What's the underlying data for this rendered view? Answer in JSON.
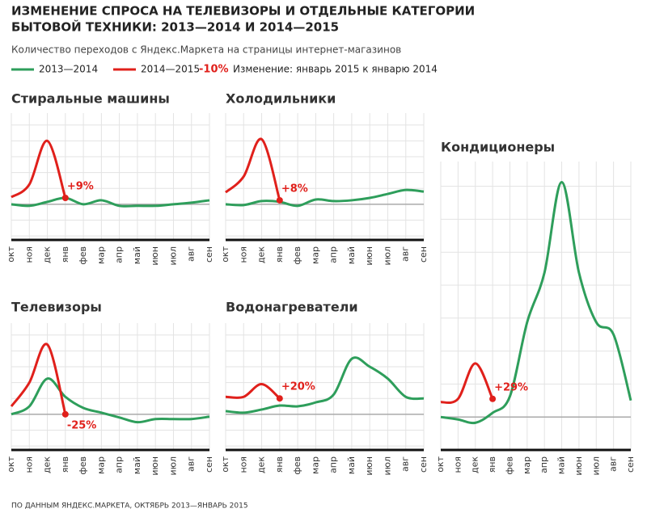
{
  "title": [
    "ИЗМЕНЕНИЕ СПРОСА НА ТЕЛЕВИЗОРЫ И ОТДЕЛЬНЫЕ КАТЕГОРИИ",
    "БЫТОВОЙ ТЕХНИКИ: 2013—2014 И 2014—2015"
  ],
  "subtitle": "Количество переходов с Яндекс.Маркета на страницы интернет-магазинов",
  "legend": [
    {
      "name": "2013—2014",
      "color": "#2e9e5b"
    },
    {
      "name": "2014—2015",
      "color": "#e0201b"
    }
  ],
  "legend_note": {
    "sample": "-10%",
    "text": "Изменение: январь 2015 к январю 2014"
  },
  "source": "ПО ДАННЫМ ЯНДЕКС.МАРКЕТА, ОКТЯБРЬ 2013—ЯНВАРЬ 2015",
  "chart_data": [
    {
      "type": "line",
      "title": "Стиральные машины",
      "categories": [
        "окт",
        "ноя",
        "дек",
        "янв",
        "фев",
        "мар",
        "апр",
        "май",
        "июн",
        "июл",
        "авг",
        "сен"
      ],
      "series": [
        {
          "values": [
            0,
            -2,
            3,
            8,
            0,
            5,
            -2,
            -2,
            -2,
            0,
            2,
            5
          ]
        },
        {
          "values": [
            9,
            25,
            80,
            8,
            null,
            null,
            null,
            null,
            null,
            null,
            null,
            null
          ]
        }
      ],
      "annotation": "+9%",
      "ylim": [
        -45,
        115
      ],
      "yticks": [
        -40,
        -20,
        0,
        20,
        40,
        60,
        80,
        100
      ],
      "grid": true,
      "reference_line": 0
    },
    {
      "type": "line",
      "title": "Холодильники",
      "categories": [
        "окт",
        "ноя",
        "дек",
        "янв",
        "фев",
        "мар",
        "апр",
        "май",
        "июн",
        "июл",
        "авг",
        "сен"
      ],
      "series": [
        {
          "values": [
            0,
            -1,
            4,
            3,
            -2,
            6,
            4,
            5,
            8,
            13,
            18,
            16
          ]
        },
        {
          "values": [
            15,
            35,
            82,
            5,
            null,
            null,
            null,
            null,
            null,
            null,
            null,
            null
          ]
        }
      ],
      "annotation": "+8%",
      "ylim": [
        -45,
        115
      ],
      "yticks": [
        -40,
        -20,
        0,
        20,
        40,
        60,
        80,
        100
      ],
      "grid": true,
      "reference_line": 0
    },
    {
      "type": "line",
      "title": "Телевизоры",
      "categories": [
        "окт",
        "ноя",
        "дек",
        "янв",
        "фев",
        "мар",
        "апр",
        "май",
        "июн",
        "июл",
        "авг",
        "сен"
      ],
      "series": [
        {
          "values": [
            0,
            10,
            45,
            22,
            8,
            2,
            -4,
            -10,
            -6,
            -6,
            -6,
            -3
          ]
        },
        {
          "values": [
            10,
            40,
            88,
            0,
            null,
            null,
            null,
            null,
            null,
            null,
            null,
            null
          ]
        }
      ],
      "annotation": "-25%",
      "ylim": [
        -45,
        115
      ],
      "yticks": [
        -40,
        -20,
        0,
        20,
        40,
        60,
        80,
        100
      ],
      "grid": true,
      "reference_line": 0
    },
    {
      "type": "line",
      "title": "Водонагреватели",
      "categories": [
        "окт",
        "ноя",
        "дек",
        "янв",
        "фев",
        "мар",
        "апр",
        "май",
        "июн",
        "июл",
        "авг",
        "сен"
      ],
      "series": [
        {
          "values": [
            4,
            2,
            6,
            11,
            10,
            15,
            25,
            70,
            60,
            45,
            22,
            20
          ]
        },
        {
          "values": [
            22,
            22,
            38,
            20,
            null,
            null,
            null,
            null,
            null,
            null,
            null,
            null
          ]
        }
      ],
      "annotation": "+20%",
      "ylim": [
        -45,
        115
      ],
      "yticks": [
        -40,
        -20,
        0,
        20,
        40,
        60,
        80,
        100
      ],
      "grid": true,
      "reference_line": 0
    },
    {
      "type": "line",
      "title": "Кондиционеры",
      "categories": [
        "окт",
        "ноя",
        "дек",
        "янв",
        "фев",
        "мар",
        "апр",
        "май",
        "июн",
        "июл",
        "авг",
        "сен"
      ],
      "series": [
        {
          "values": [
            0,
            -3,
            -7,
            5,
            25,
            115,
            175,
            285,
            175,
            115,
            100,
            20
          ]
        },
        {
          "values": [
            18,
            22,
            65,
            22,
            null,
            null,
            null,
            null,
            null,
            null,
            null,
            null
          ]
        }
      ],
      "annotation": "+29%",
      "ylim": [
        -40,
        310
      ],
      "yticks": [
        -40,
        0,
        40,
        80,
        120,
        160,
        200,
        240,
        280
      ],
      "grid": true,
      "reference_line": 0
    }
  ]
}
